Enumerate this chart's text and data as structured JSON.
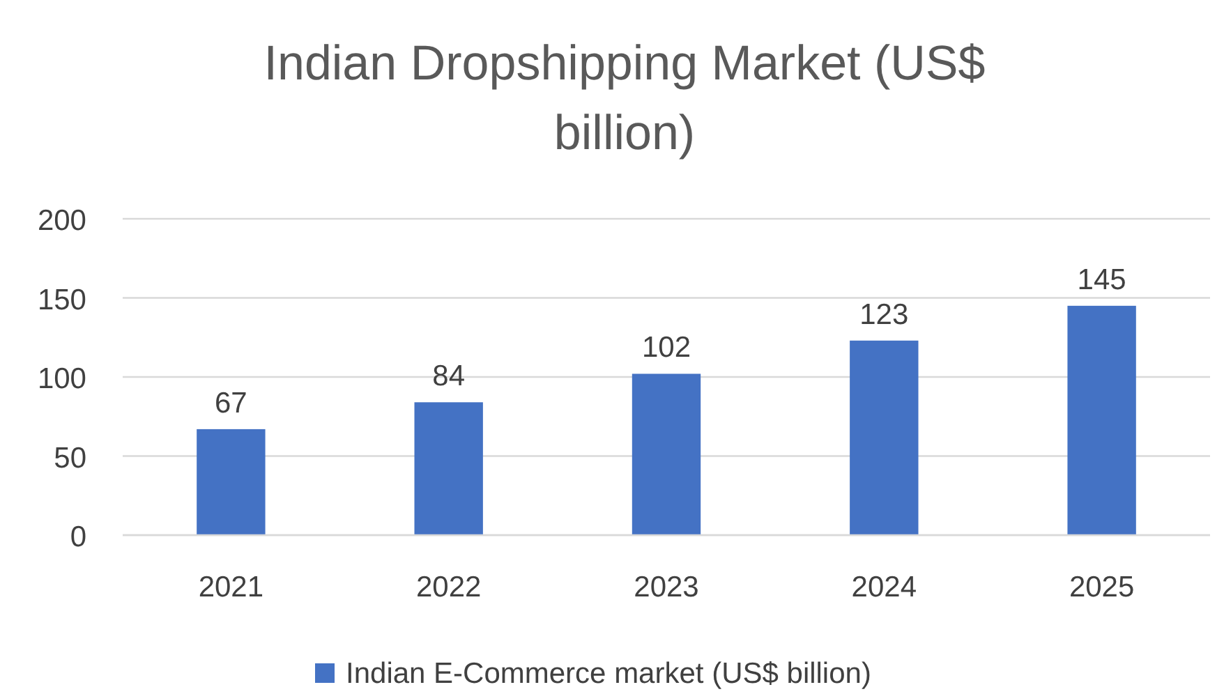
{
  "chart_data": {
    "type": "bar",
    "title": "Indian Dropshipping Market (US$ billion)",
    "categories": [
      "2021",
      "2022",
      "2023",
      "2024",
      "2025"
    ],
    "series": [
      {
        "name": "Indian E-Commerce market (US$ billion)",
        "color": "#4472c4",
        "values": [
          67,
          84,
          102,
          123,
          145
        ]
      }
    ],
    "ylim": [
      0,
      200
    ],
    "yticks": [
      0,
      50,
      100,
      150,
      200
    ],
    "grid": "y",
    "data_labels": true,
    "legend": "bottom"
  }
}
